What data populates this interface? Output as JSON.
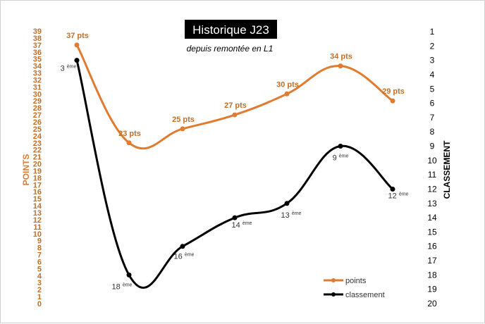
{
  "chart_data": {
    "type": "line",
    "title": "Historique J23",
    "subtitle": "depuis remontée en L1",
    "y_left": {
      "label": "POINTS",
      "range": [
        0,
        39
      ],
      "ticks": [
        0,
        1,
        2,
        3,
        4,
        5,
        6,
        7,
        8,
        9,
        10,
        11,
        12,
        13,
        14,
        15,
        16,
        17,
        18,
        19,
        20,
        21,
        22,
        23,
        24,
        25,
        26,
        27,
        28,
        29,
        30,
        31,
        32,
        33,
        34,
        35,
        36,
        37,
        38,
        39
      ]
    },
    "y_right": {
      "label": "CLASSEMENT",
      "range": [
        1,
        20
      ],
      "inverted": true,
      "ticks": [
        1,
        2,
        3,
        4,
        5,
        6,
        7,
        8,
        9,
        10,
        11,
        12,
        13,
        14,
        15,
        16,
        17,
        18,
        19,
        20
      ]
    },
    "grid": false,
    "legend_position": "bottom-right",
    "series": [
      {
        "name": "points",
        "color": "#E07B30",
        "axis": "left",
        "values": [
          37,
          23,
          25,
          27,
          30,
          34,
          29
        ],
        "labels": [
          "37 pts",
          "23 pts",
          "25 pts",
          "27 pts",
          "30 pts",
          "34 pts",
          "29 pts"
        ]
      },
      {
        "name": "classement",
        "color": "#000000",
        "axis": "right",
        "values": [
          3,
          18,
          16,
          14,
          13,
          9,
          12
        ],
        "labels": [
          {
            "num": "3",
            "sup": "ème"
          },
          {
            "num": "18",
            "sup": "ème"
          },
          {
            "num": "16",
            "sup": "ème"
          },
          {
            "num": "14",
            "sup": "ème"
          },
          {
            "num": "13",
            "sup": "ème"
          },
          {
            "num": "9",
            "sup": "ème"
          },
          {
            "num": "12",
            "sup": "ème"
          }
        ]
      }
    ]
  },
  "colors": {
    "points": "#E07B30",
    "points_text": "#C0702A",
    "classement": "#000000"
  }
}
